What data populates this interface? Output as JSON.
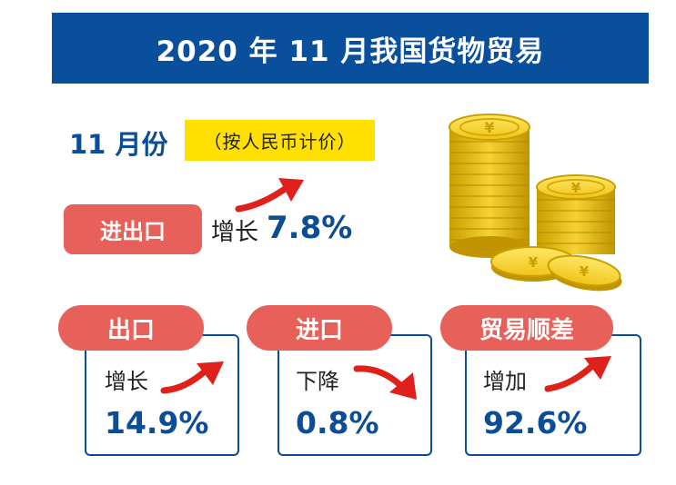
{
  "title": "2020 年 11 月我国货物贸易",
  "month": "11 月份",
  "pricing_note": "（按人民币计价）",
  "total": {
    "label": "进出口",
    "change_word": "增长",
    "value": "7.8%"
  },
  "cards": [
    {
      "label": "出口",
      "change_word": "增长",
      "value": "14.9%",
      "direction": "up"
    },
    {
      "label": "进口",
      "change_word": "下降",
      "value": "0.8%",
      "direction": "down"
    },
    {
      "label": "贸易顺差",
      "change_word": "增加",
      "value": "92.6%",
      "direction": "up"
    }
  ],
  "colors": {
    "banner": "#0a4f9c",
    "accent_red": "#e8605a",
    "value_blue": "#0b4d97",
    "highlight_yellow": "#ffe000"
  }
}
